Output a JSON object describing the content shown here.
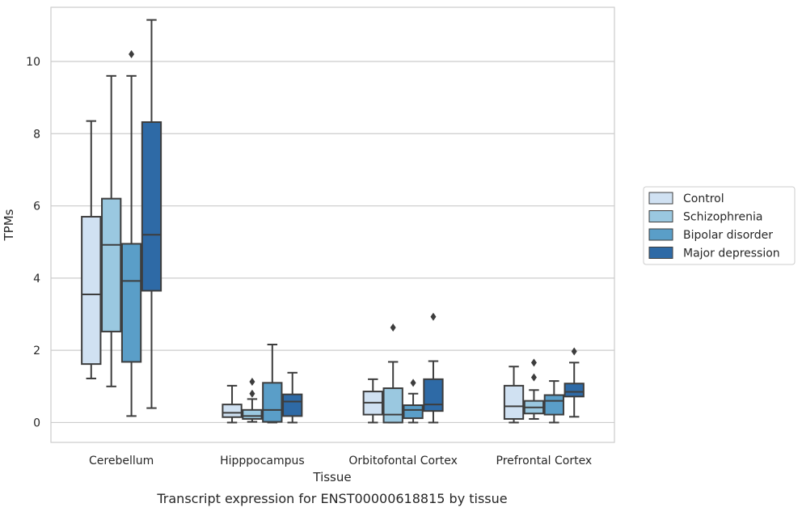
{
  "caption": "Transcript expression for ENST00000618815 by tissue",
  "chart_data": {
    "type": "box",
    "xlabel": "Tissue",
    "ylabel": "TPMs",
    "ylim": [
      -0.55,
      11.5
    ],
    "yticks": [
      0,
      2,
      4,
      6,
      8,
      10
    ],
    "grid": "horizontal",
    "legend_position": "right",
    "categories": [
      "Cerebellum",
      "Hipppocampus",
      "Orbitofontal Cortex",
      "Prefrontal Cortex"
    ],
    "series": [
      {
        "name": "Control",
        "color": "#d0e1f2",
        "boxes": [
          {
            "whislo": 1.22,
            "q1": 1.62,
            "med": 3.55,
            "q3": 5.7,
            "whishi": 8.35,
            "fliers": []
          },
          {
            "whislo": 0.0,
            "q1": 0.15,
            "med": 0.27,
            "q3": 0.5,
            "whishi": 1.02,
            "fliers": []
          },
          {
            "whislo": 0.0,
            "q1": 0.22,
            "med": 0.55,
            "q3": 0.86,
            "whishi": 1.2,
            "fliers": []
          },
          {
            "whislo": 0.0,
            "q1": 0.1,
            "med": 0.45,
            "q3": 1.02,
            "whishi": 1.55,
            "fliers": []
          }
        ]
      },
      {
        "name": "Schizophrenia",
        "color": "#9ac8e0",
        "boxes": [
          {
            "whislo": 1.0,
            "q1": 2.52,
            "med": 4.92,
            "q3": 6.2,
            "whishi": 9.6,
            "fliers": []
          },
          {
            "whislo": 0.02,
            "q1": 0.1,
            "med": 0.18,
            "q3": 0.35,
            "whishi": 0.65,
            "fliers": [
              0.8,
              1.13
            ]
          },
          {
            "whislo": 0.0,
            "q1": 0.0,
            "med": 0.22,
            "q3": 0.95,
            "whishi": 1.68,
            "fliers": [
              2.63
            ]
          },
          {
            "whislo": 0.1,
            "q1": 0.25,
            "med": 0.42,
            "q3": 0.6,
            "whishi": 0.9,
            "fliers": [
              1.25,
              1.66
            ]
          }
        ]
      },
      {
        "name": "Bipolar disorder",
        "color": "#5a9ec8",
        "boxes": [
          {
            "whislo": 0.18,
            "q1": 1.68,
            "med": 3.92,
            "q3": 4.95,
            "whishi": 9.6,
            "fliers": [
              10.2
            ]
          },
          {
            "whislo": 0.0,
            "q1": 0.02,
            "med": 0.35,
            "q3": 1.1,
            "whishi": 2.16,
            "fliers": []
          },
          {
            "whislo": 0.0,
            "q1": 0.12,
            "med": 0.35,
            "q3": 0.48,
            "whishi": 0.8,
            "fliers": [
              1.1
            ]
          },
          {
            "whislo": 0.0,
            "q1": 0.22,
            "med": 0.6,
            "q3": 0.76,
            "whishi": 1.15,
            "fliers": []
          }
        ]
      },
      {
        "name": "Major depression",
        "color": "#2e6aa6",
        "boxes": [
          {
            "whislo": 0.4,
            "q1": 3.65,
            "med": 5.2,
            "q3": 8.32,
            "whishi": 11.15,
            "fliers": []
          },
          {
            "whislo": 0.0,
            "q1": 0.18,
            "med": 0.58,
            "q3": 0.78,
            "whishi": 1.38,
            "fliers": []
          },
          {
            "whislo": 0.0,
            "q1": 0.32,
            "med": 0.5,
            "q3": 1.2,
            "whishi": 1.7,
            "fliers": [
              2.93
            ]
          },
          {
            "whislo": 0.16,
            "q1": 0.72,
            "med": 0.85,
            "q3": 1.08,
            "whishi": 1.66,
            "fliers": [
              1.97
            ]
          }
        ]
      }
    ]
  }
}
